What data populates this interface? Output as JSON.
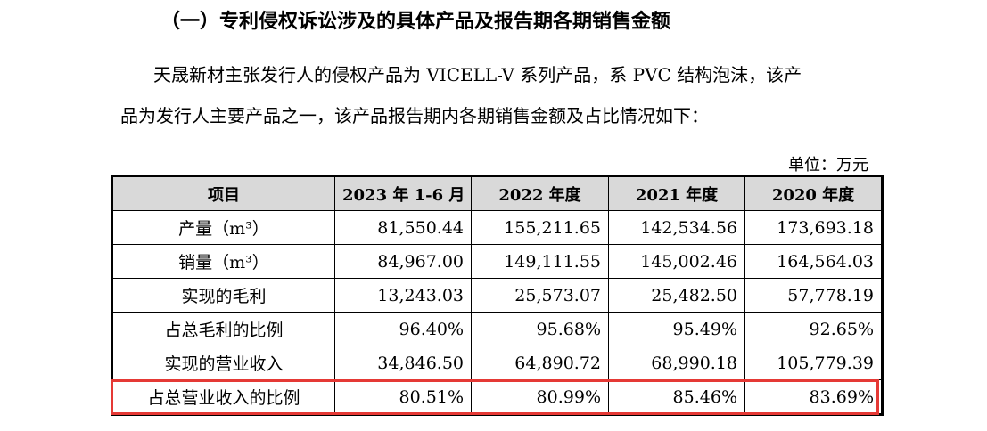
{
  "heading": "（一）专利侵权诉讼涉及的具体产品及报告期各期销售金额",
  "paragraph": {
    "line1": "天晟新材主张发行人的侵权产品为 VICELL-V 系列产品，系 PVC 结构泡沫，该产",
    "line2": "品为发行人主要产品之一，该产品报告期内各期销售金额及占比情况如下："
  },
  "unit": "单位：万元",
  "table": {
    "headers": [
      "项目",
      "2023 年 1-6 月",
      "2022 年度",
      "2021 年度",
      "2020 年度"
    ],
    "rows": [
      {
        "label": "产量（m³）",
        "values": [
          "81,550.44",
          "155,211.65",
          "142,534.56",
          "173,693.18"
        ]
      },
      {
        "label": "销量（m³）",
        "values": [
          "84,967.00",
          "149,111.55",
          "145,002.46",
          "164,564.03"
        ]
      },
      {
        "label": "实现的毛利",
        "values": [
          "13,243.03",
          "25,573.07",
          "25,482.50",
          "57,778.19"
        ]
      },
      {
        "label": "占总毛利的比例",
        "values": [
          "96.40%",
          "95.68%",
          "95.49%",
          "92.65%"
        ]
      },
      {
        "label": "实现的营业收入",
        "values": [
          "34,846.50",
          "64,890.72",
          "68,990.18",
          "105,779.39"
        ]
      },
      {
        "label": "占总营业收入的比例",
        "values": [
          "80.51%",
          "80.99%",
          "85.46%",
          "83.69%"
        ]
      }
    ]
  },
  "colors": {
    "highlight": "#e53935",
    "header_bg": "#d9d9d9"
  }
}
